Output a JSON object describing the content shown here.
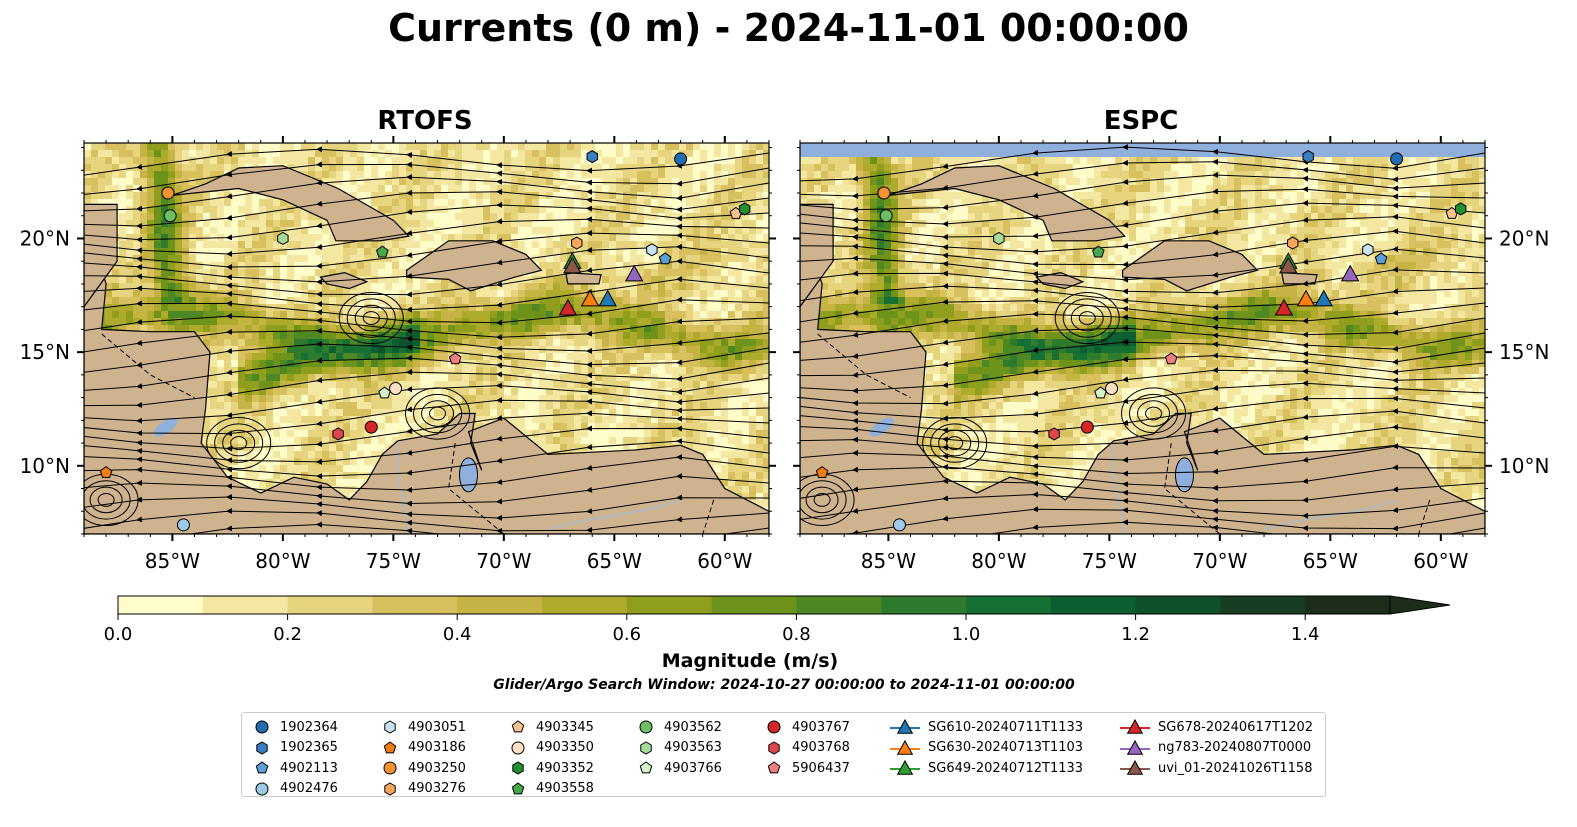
{
  "title": "Currents (0 m) - 2024-11-01 00:00:00",
  "colors": {
    "land": "#cfb38e",
    "water_inland": "#8fb0dc",
    "river": "#a7bccf",
    "cmap": [
      "#fefcc8",
      "#f4e7a1",
      "#e7d47e",
      "#d8c05f",
      "#c5b443",
      "#aeaa2c",
      "#8f9f1d",
      "#6d931b",
      "#4e8825",
      "#2e7b2e",
      "#177033",
      "#0c5f30",
      "#0f4f29",
      "#173e22",
      "#1c2e1a"
    ]
  },
  "colorbar": {
    "label": "Magnitude (m/s)",
    "ticks": [
      "0.0",
      "0.2",
      "0.4",
      "0.6",
      "0.8",
      "1.0",
      "1.2",
      "1.4"
    ],
    "vmin": 0.0,
    "vmax": 1.5,
    "extend": "max"
  },
  "search_window": "Glider/Argo Search Window: 2024-10-27 00:00:00 to 2024-11-01 00:00:00",
  "chart_data": [
    {
      "type": "streamplot map",
      "title": "RTOFS",
      "lon_range": [
        -89,
        -58
      ],
      "lat_range": [
        7,
        24.2
      ],
      "x_ticks": [
        "85°W",
        "80°W",
        "75°W",
        "70°W",
        "65°W",
        "60°W"
      ],
      "y_ticks": [
        "10°N",
        "15°N",
        "20°N"
      ]
    },
    {
      "type": "streamplot map",
      "title": "ESPC",
      "lon_range": [
        -89,
        -58
      ],
      "lat_range": [
        7,
        24.2
      ],
      "x_ticks": [
        "85°W",
        "80°W",
        "75°W",
        "70°W",
        "65°W",
        "60°W"
      ],
      "y_ticks": [
        "10°N",
        "15°N",
        "20°N"
      ]
    }
  ],
  "floats": [
    {
      "id": "1902364",
      "marker": "circle",
      "color": "#1f6eb3",
      "lon": -62.0,
      "lat": 23.5
    },
    {
      "id": "1902365",
      "marker": "hexagon",
      "color": "#3a7dc0",
      "lon": -66.0,
      "lat": 23.6
    },
    {
      "id": "4902113",
      "marker": "pentagon",
      "color": "#5a9fd6",
      "lon": -62.7,
      "lat": 19.1
    },
    {
      "id": "4902476",
      "marker": "circle",
      "color": "#9ccae8",
      "lon": -84.5,
      "lat": 7.4
    },
    {
      "id": "4903051",
      "marker": "hexagon",
      "color": "#c8e2f2",
      "lon": -63.3,
      "lat": 19.5
    },
    {
      "id": "4903186",
      "marker": "pentagon",
      "color": "#f07b0e",
      "lon": -88.0,
      "lat": 9.7
    },
    {
      "id": "4903250",
      "marker": "circle",
      "color": "#f79232",
      "lon": -85.2,
      "lat": 22.0
    },
    {
      "id": "4903276",
      "marker": "hexagon",
      "color": "#f9a55c",
      "lon": -66.7,
      "lat": 19.8
    },
    {
      "id": "4903345",
      "marker": "pentagon",
      "color": "#fbc18a",
      "lon": -59.5,
      "lat": 21.1
    },
    {
      "id": "4903350",
      "marker": "circle",
      "color": "#fde0c4",
      "lon": -74.9,
      "lat": 13.4
    },
    {
      "id": "4903352",
      "marker": "hexagon",
      "color": "#23902e",
      "lon": -59.1,
      "lat": 21.3
    },
    {
      "id": "4903558",
      "marker": "pentagon",
      "color": "#46a84a",
      "lon": -75.5,
      "lat": 19.4
    },
    {
      "id": "4903562",
      "marker": "circle",
      "color": "#6cc063",
      "lon": -85.1,
      "lat": 21.0
    },
    {
      "id": "4903563",
      "marker": "hexagon",
      "color": "#a5dd98",
      "lon": -80.0,
      "lat": 20.0
    },
    {
      "id": "4903766",
      "marker": "pentagon",
      "color": "#d4f1c7",
      "lon": -75.4,
      "lat": 13.2
    },
    {
      "id": "4903767",
      "marker": "circle",
      "color": "#d62728",
      "lon": -76.0,
      "lat": 11.7
    },
    {
      "id": "4903768",
      "marker": "hexagon",
      "color": "#e0454a",
      "lon": -77.5,
      "lat": 11.4
    },
    {
      "id": "5906437",
      "marker": "pentagon",
      "color": "#f07e80",
      "lon": -72.2,
      "lat": 14.7
    }
  ],
  "gliders": [
    {
      "id": "SG610-20240711T1133",
      "color": "#1f77b4",
      "lon": -65.3,
      "lat": 17.3
    },
    {
      "id": "SG630-20240713T1103",
      "color": "#ff7f0e",
      "lon": -66.1,
      "lat": 17.3
    },
    {
      "id": "SG649-20240712T1133",
      "color": "#2ca02c",
      "lon": -66.9,
      "lat": 18.95
    },
    {
      "id": "SG678-20240617T1202",
      "color": "#d62728",
      "lon": -67.1,
      "lat": 16.9
    },
    {
      "id": "ng783-20240807T0000",
      "color": "#9467bd",
      "lon": -64.1,
      "lat": 18.4
    },
    {
      "id": "uvi_01-20241026T1158",
      "color": "#8c564b",
      "lon": -66.9,
      "lat": 18.75
    }
  ]
}
